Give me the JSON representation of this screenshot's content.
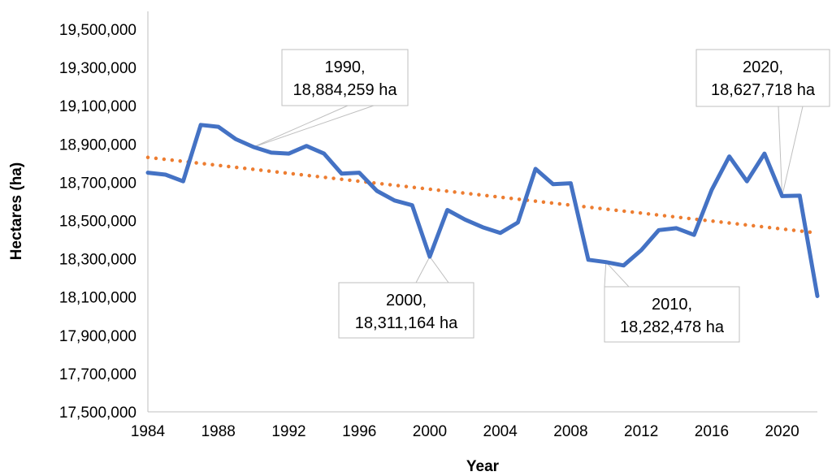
{
  "chart_data": {
    "type": "line",
    "xlabel": "Year",
    "ylabel": "Hectares (ha)",
    "ylim": [
      17500000,
      19500000
    ],
    "xlim": [
      1984,
      2022
    ],
    "y_ticks": [
      "17,500,000",
      "17,700,000",
      "17,900,000",
      "18,100,000",
      "18,300,000",
      "18,500,000",
      "18,700,000",
      "18,900,000",
      "19,100,000",
      "19,300,000",
      "19,500,000"
    ],
    "x_ticks": [
      "1984",
      "1988",
      "1992",
      "1996",
      "2000",
      "2004",
      "2008",
      "2012",
      "2016",
      "2020"
    ],
    "grid": false,
    "series": [
      {
        "kind": "data",
        "color": "#4472C4",
        "x": [
          1984,
          1985,
          1986,
          1987,
          1988,
          1989,
          1990,
          1991,
          1992,
          1993,
          1994,
          1995,
          1996,
          1997,
          1998,
          1999,
          2000,
          2001,
          2002,
          2003,
          2004,
          2005,
          2006,
          2007,
          2008,
          2009,
          2010,
          2011,
          2012,
          2013,
          2014,
          2015,
          2016,
          2017,
          2018,
          2019,
          2020,
          2021,
          2022
        ],
        "y": [
          18750000,
          18740000,
          18705000,
          19000000,
          18990000,
          18925000,
          18884259,
          18855000,
          18850000,
          18890000,
          18850000,
          18745000,
          18750000,
          18655000,
          18605000,
          18580000,
          18311164,
          18555000,
          18505000,
          18465000,
          18435000,
          18490000,
          18770000,
          18690000,
          18695000,
          18295000,
          18282478,
          18265000,
          18345000,
          18450000,
          18460000,
          18425000,
          18660000,
          18835000,
          18705000,
          18850000,
          18627718,
          18630000,
          18105000
        ]
      },
      {
        "kind": "trendline",
        "color": "#ED7D31",
        "x": [
          1984,
          2022
        ],
        "y": [
          18830000,
          18435000
        ]
      }
    ],
    "annotations": [
      {
        "year_label": "1990,",
        "value_label": "18,884,259 ha"
      },
      {
        "year_label": "2000,",
        "value_label": "18,311,164 ha"
      },
      {
        "year_label": "2010,",
        "value_label": "18,282,478 ha"
      },
      {
        "year_label": "2020,",
        "value_label": "18,627,718 ha"
      }
    ]
  }
}
